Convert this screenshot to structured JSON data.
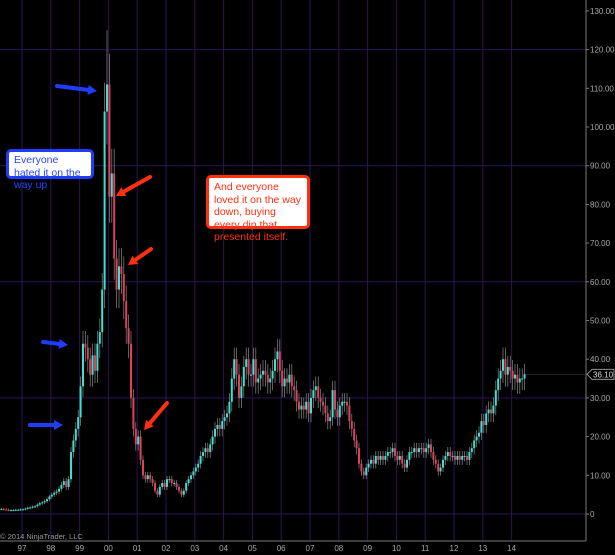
{
  "watermark": "© 2014 NinjaTrader, LLC",
  "annotations": {
    "blue_note": "Everyone hated it on the way up",
    "red_note": "And everyone loved it on the way down, buying every dip that presented itself."
  },
  "colors": {
    "background": "#000000",
    "up_candle": "#40e0d0",
    "down_candle": "#e0405a",
    "wick": "#8a8a8a",
    "grid": "#2c1450",
    "blue_arrow": "#1f3cff",
    "red_arrow": "#ff3010",
    "axis_text": "#a8a8a8"
  },
  "chart_data": {
    "type": "candlestick",
    "title": "",
    "xlabel": "",
    "ylabel": "",
    "x_tick_labels": [
      "97",
      "98",
      "99",
      "00",
      "01",
      "02",
      "03",
      "04",
      "05",
      "06",
      "07",
      "08",
      "09",
      "10",
      "11",
      "12",
      "13",
      "14"
    ],
    "y_tick_labels": [
      "0",
      "10.00",
      "20.00",
      "30.00",
      "40.00",
      "50.00",
      "60.00",
      "70.00",
      "80.00",
      "90.00",
      "100.00",
      "110.00",
      "120.00",
      "130.00"
    ],
    "ylim": [
      0,
      130
    ],
    "horizontal_grid_at": [
      0,
      30,
      60,
      90,
      120
    ],
    "vertical_grid": "each year",
    "last_price": "36.10",
    "peak_high": 125,
    "closes": [
      1.3,
      1.2,
      1.1,
      1.0,
      1.0,
      1.0,
      1.1,
      1.1,
      1.2,
      1.2,
      1.4,
      1.6,
      1.7,
      1.9,
      2.0,
      2.4,
      2.8,
      3.0,
      3.3,
      3.8,
      4.5,
      5.0,
      5.5,
      5.8,
      6.5,
      7.5,
      8.5,
      7.0,
      9.0,
      16,
      19,
      22,
      25,
      33,
      44,
      43,
      40,
      36,
      41,
      37,
      44,
      47,
      58,
      104,
      111,
      82,
      88,
      66,
      58,
      64,
      62,
      55,
      48,
      44,
      30,
      22,
      18,
      20,
      14,
      10,
      9,
      10,
      9,
      8,
      6,
      5,
      7,
      8,
      7,
      9,
      9,
      8,
      8,
      7,
      6,
      5,
      6,
      8,
      9,
      10,
      11,
      12,
      13,
      15,
      16,
      17,
      16,
      18,
      20,
      22,
      23,
      22,
      24,
      25,
      26,
      29,
      35,
      40,
      36,
      30,
      33,
      38,
      40,
      36,
      36,
      40,
      34,
      35,
      36,
      37,
      36,
      34,
      35,
      37,
      40,
      42,
      37,
      33,
      35,
      34,
      36,
      33,
      32,
      29,
      27,
      28,
      27,
      29,
      26,
      30,
      32,
      33,
      30,
      29,
      28,
      26,
      24,
      25,
      32,
      27,
      25,
      28,
      29,
      29,
      28,
      24,
      22,
      19,
      17,
      13,
      11,
      10,
      12,
      13,
      14,
      13,
      15,
      14,
      15,
      14,
      15,
      16,
      16,
      17,
      15,
      14,
      15,
      13,
      12,
      14,
      16,
      16,
      17,
      16,
      17,
      17,
      16,
      17,
      18,
      16,
      14,
      13,
      11,
      12,
      14,
      15,
      16,
      15,
      15,
      14,
      15,
      14,
      15,
      15,
      14,
      16,
      17,
      19,
      20,
      21,
      24,
      23,
      26,
      27,
      26,
      28,
      32,
      35,
      37,
      40,
      36,
      38,
      37,
      35,
      36,
      34,
      35,
      35,
      36.1
    ]
  }
}
